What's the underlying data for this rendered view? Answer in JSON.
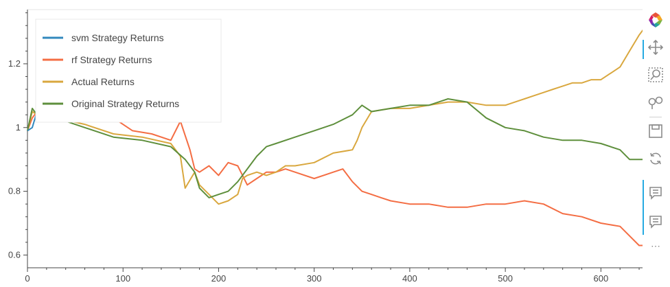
{
  "chart_data": {
    "type": "line",
    "x_axis": {
      "ticks": [
        "0",
        "100",
        "200",
        "300",
        "400",
        "500",
        "600"
      ],
      "range": [
        0,
        645
      ]
    },
    "y_axis": {
      "ticks": [
        "0.6",
        "0.8",
        "1",
        "1.2"
      ],
      "range": [
        0.56,
        1.37
      ]
    },
    "legend": {
      "placement": "top-left",
      "entries": [
        {
          "name": "svm Strategy Returns",
          "color": "#3288bd"
        },
        {
          "name": "rf Strategy Returns",
          "color": "#f46d43"
        },
        {
          "name": "Actual Returns",
          "color": "#d9a73e"
        },
        {
          "name": "Original Strategy Returns",
          "color": "#5e8f3c"
        }
      ]
    },
    "series": [
      {
        "name": "rf Strategy Returns",
        "color": "#f46d43",
        "x": [
          0,
          5,
          10,
          20,
          30,
          50,
          70,
          90,
          110,
          130,
          150,
          160,
          170,
          175,
          180,
          190,
          200,
          210,
          220,
          230,
          240,
          250,
          260,
          270,
          280,
          300,
          320,
          330,
          340,
          350,
          360,
          370,
          380,
          400,
          420,
          440,
          460,
          480,
          500,
          520,
          540,
          560,
          580,
          600,
          620,
          640,
          645
        ],
        "y": [
          0.99,
          1.03,
          1.05,
          1.04,
          1.03,
          1.02,
          1.02,
          1.03,
          0.99,
          0.98,
          0.96,
          1.02,
          0.93,
          0.87,
          0.86,
          0.88,
          0.85,
          0.89,
          0.88,
          0.82,
          0.84,
          0.86,
          0.86,
          0.87,
          0.86,
          0.84,
          0.86,
          0.87,
          0.83,
          0.8,
          0.79,
          0.78,
          0.77,
          0.76,
          0.76,
          0.75,
          0.75,
          0.76,
          0.76,
          0.77,
          0.76,
          0.73,
          0.72,
          0.7,
          0.69,
          0.63,
          0.63
        ]
      },
      {
        "name": "Actual Returns",
        "color": "#d9a73e",
        "x": [
          0,
          5,
          10,
          30,
          60,
          90,
          120,
          150,
          160,
          165,
          175,
          180,
          190,
          200,
          210,
          220,
          225,
          230,
          240,
          250,
          260,
          270,
          280,
          300,
          320,
          340,
          345,
          350,
          360,
          380,
          400,
          420,
          440,
          460,
          480,
          500,
          520,
          530,
          540,
          550,
          560,
          570,
          580,
          590,
          600,
          620,
          630,
          640,
          645
        ],
        "y": [
          0.99,
          1.05,
          1.04,
          1.03,
          1.01,
          0.98,
          0.97,
          0.95,
          0.91,
          0.81,
          0.86,
          0.82,
          0.79,
          0.76,
          0.77,
          0.79,
          0.84,
          0.85,
          0.86,
          0.85,
          0.86,
          0.88,
          0.88,
          0.89,
          0.92,
          0.93,
          0.96,
          1.0,
          1.05,
          1.06,
          1.06,
          1.07,
          1.08,
          1.08,
          1.07,
          1.07,
          1.09,
          1.1,
          1.11,
          1.12,
          1.13,
          1.14,
          1.14,
          1.15,
          1.15,
          1.19,
          1.24,
          1.29,
          1.31
        ]
      },
      {
        "name": "Original Strategy Returns",
        "color": "#5e8f3c",
        "x": [
          0,
          5,
          10,
          30,
          60,
          90,
          120,
          150,
          165,
          175,
          180,
          190,
          200,
          210,
          220,
          230,
          240,
          250,
          260,
          280,
          300,
          320,
          340,
          350,
          360,
          380,
          400,
          420,
          440,
          460,
          480,
          500,
          520,
          540,
          560,
          580,
          600,
          620,
          630,
          640,
          645
        ],
        "y": [
          0.99,
          1.06,
          1.04,
          1.03,
          1.0,
          0.97,
          0.96,
          0.94,
          0.9,
          0.86,
          0.81,
          0.78,
          0.79,
          0.8,
          0.83,
          0.87,
          0.91,
          0.94,
          0.95,
          0.97,
          0.99,
          1.01,
          1.04,
          1.07,
          1.05,
          1.06,
          1.07,
          1.07,
          1.09,
          1.08,
          1.03,
          1.0,
          0.99,
          0.97,
          0.96,
          0.96,
          0.95,
          0.93,
          0.9,
          0.9,
          0.9
        ]
      },
      {
        "name": "svm Strategy Returns",
        "color": "#3288bd",
        "x": [
          0,
          5,
          10,
          20
        ],
        "y": [
          0.99,
          1.0,
          1.05,
          1.04
        ]
      }
    ]
  },
  "toolbar": {
    "icons": [
      "bokeh-logo-icon",
      "pan-icon",
      "box-zoom-icon",
      "wheel-zoom-icon",
      "save-icon",
      "reset-icon",
      "hover-icon",
      "hover-icon-2",
      "more-icon"
    ],
    "more_label": "⋯"
  }
}
